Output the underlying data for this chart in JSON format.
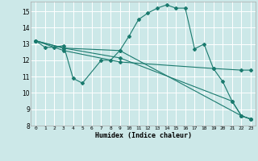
{
  "xlabel": "Humidex (Indice chaleur)",
  "bg_color": "#cce8e8",
  "grid_color": "#ffffff",
  "line_color": "#1a7a6e",
  "xlim": [
    -0.5,
    23.5
  ],
  "ylim": [
    8,
    15.6
  ],
  "yticks": [
    8,
    9,
    10,
    11,
    12,
    13,
    14,
    15
  ],
  "xticks": [
    0,
    1,
    2,
    3,
    4,
    5,
    6,
    7,
    8,
    9,
    10,
    11,
    12,
    13,
    14,
    15,
    16,
    17,
    18,
    19,
    20,
    21,
    22,
    23
  ],
  "line1": {
    "x": [
      0,
      1,
      2,
      3,
      4,
      5,
      7,
      8,
      9,
      10,
      11,
      12,
      13,
      14,
      15,
      16,
      17,
      18,
      19,
      20,
      21,
      22,
      23
    ],
    "y": [
      13.2,
      12.8,
      12.8,
      12.9,
      10.9,
      10.6,
      12.0,
      12.0,
      12.6,
      13.5,
      14.5,
      14.9,
      15.2,
      15.4,
      15.2,
      15.2,
      12.7,
      13.0,
      11.5,
      10.7,
      9.5,
      8.6,
      8.4
    ]
  },
  "line2": {
    "x": [
      0,
      3,
      9,
      22,
      23
    ],
    "y": [
      13.2,
      12.75,
      12.6,
      8.6,
      8.4
    ]
  },
  "line3": {
    "x": [
      0,
      3,
      9,
      21,
      22,
      23
    ],
    "y": [
      13.2,
      12.75,
      12.15,
      9.5,
      8.6,
      8.4
    ]
  },
  "line4": {
    "x": [
      0,
      3,
      9,
      19,
      22,
      23
    ],
    "y": [
      13.2,
      12.6,
      11.9,
      11.5,
      11.4,
      11.4
    ]
  }
}
